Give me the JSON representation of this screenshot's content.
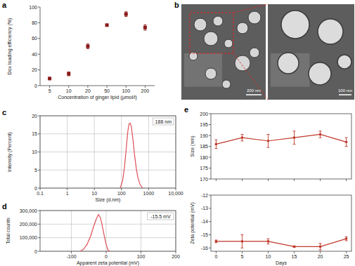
{
  "chart_data": [
    {
      "type": "scatter",
      "title": "a",
      "xlabel": "Concentration of ginger lipid (μmol/l)",
      "ylabel": "Dox loading efficiency (%)",
      "categories": [
        5,
        10,
        20,
        50,
        100,
        200
      ],
      "values": [
        9,
        15,
        50,
        77,
        91,
        74
      ],
      "errors": [
        1.5,
        2.5,
        3,
        0.5,
        3,
        3.5
      ],
      "ylim": [
        0,
        100
      ],
      "yticks": [
        0,
        20,
        40,
        60,
        80,
        100
      ],
      "color": "#8b1a1a",
      "marker": "square",
      "grid": false
    },
    {
      "type": "image",
      "title": "b",
      "annotations": [
        "200 nm",
        "100 nm"
      ]
    },
    {
      "type": "line",
      "title": "c",
      "xlabel": "Size (d.nm)",
      "ylabel": "Intensity (Percent)",
      "x": [
        90,
        110,
        130,
        150,
        170,
        190,
        210,
        230,
        260,
        300,
        350,
        400,
        480,
        600
      ],
      "values": [
        0,
        2,
        6,
        11,
        15.5,
        17.8,
        18,
        17,
        14,
        9.5,
        5.5,
        3,
        1,
        0
      ],
      "xlim": [
        0.1,
        10000
      ],
      "ylim": [
        0,
        20
      ],
      "xticks": [
        0.1,
        1,
        10,
        100,
        1000,
        {
          "value": 10000,
          "label": "10,000"
        }
      ],
      "yticks": [
        0,
        5,
        10,
        15,
        20
      ],
      "log": "x",
      "grid": true,
      "color": "#e0505a",
      "annotations": [
        "188 nm"
      ]
    },
    {
      "type": "line",
      "title": "d",
      "xlabel": "Apparent zeta potential (mV)",
      "ylabel": "Total counts",
      "x": [
        -75,
        -65,
        -55,
        -45,
        -35,
        -28,
        -22,
        -17,
        -12,
        -6,
        0,
        5,
        10
      ],
      "values": [
        0,
        15000,
        50000,
        110000,
        190000,
        240000,
        270000,
        250000,
        200000,
        120000,
        50000,
        10000,
        0
      ],
      "xlim": [
        -190,
        200
      ],
      "ylim": [
        0,
        300000
      ],
      "xticks": [
        -100,
        0,
        100,
        200
      ],
      "yticks": [
        0,
        {
          "value": 100000,
          "label": "100,000"
        },
        {
          "value": 200000,
          "label": "200,000"
        },
        {
          "value": 300000,
          "label": "300,000"
        }
      ],
      "grid": true,
      "color": "#e0505a",
      "annotations": [
        "-15.5 mV"
      ]
    },
    {
      "type": "line",
      "title": "e",
      "ylabel": "Size (nm)",
      "x": [
        0,
        5,
        10,
        15,
        20,
        25
      ],
      "values": [
        186,
        189,
        187.5,
        189,
        190.5,
        187
      ],
      "errors": [
        2,
        1.5,
        3,
        3,
        1.5,
        2
      ],
      "xlim": [
        -1,
        26
      ],
      "ylim": [
        170,
        200
      ],
      "xticks": [
        0,
        5,
        10,
        15,
        20,
        25
      ],
      "yticks": [
        170,
        175,
        180,
        185,
        190,
        195,
        200
      ],
      "tick_labels": "y",
      "marker": "circle",
      "color": "#c0392b",
      "grid": false
    },
    {
      "type": "line",
      "xlabel": "Days",
      "ylabel": "Zeta potential (mV)",
      "x": [
        0,
        5,
        10,
        15,
        20,
        25
      ],
      "values": [
        -15.5,
        -15.5,
        -15.5,
        -15.9,
        -15.9,
        -15.3
      ],
      "errors": [
        0.1,
        0.5,
        0.2,
        0.05,
        0.25,
        0.15
      ],
      "xlim": [
        -1,
        26
      ],
      "ylim": [
        -16.25,
        -12
      ],
      "xticks": [
        0,
        5,
        10,
        15,
        20,
        25
      ],
      "yticks": [
        -16,
        -15,
        -14,
        -13,
        -12
      ],
      "marker": "circle",
      "color": "#c0392b",
      "grid": false
    }
  ]
}
